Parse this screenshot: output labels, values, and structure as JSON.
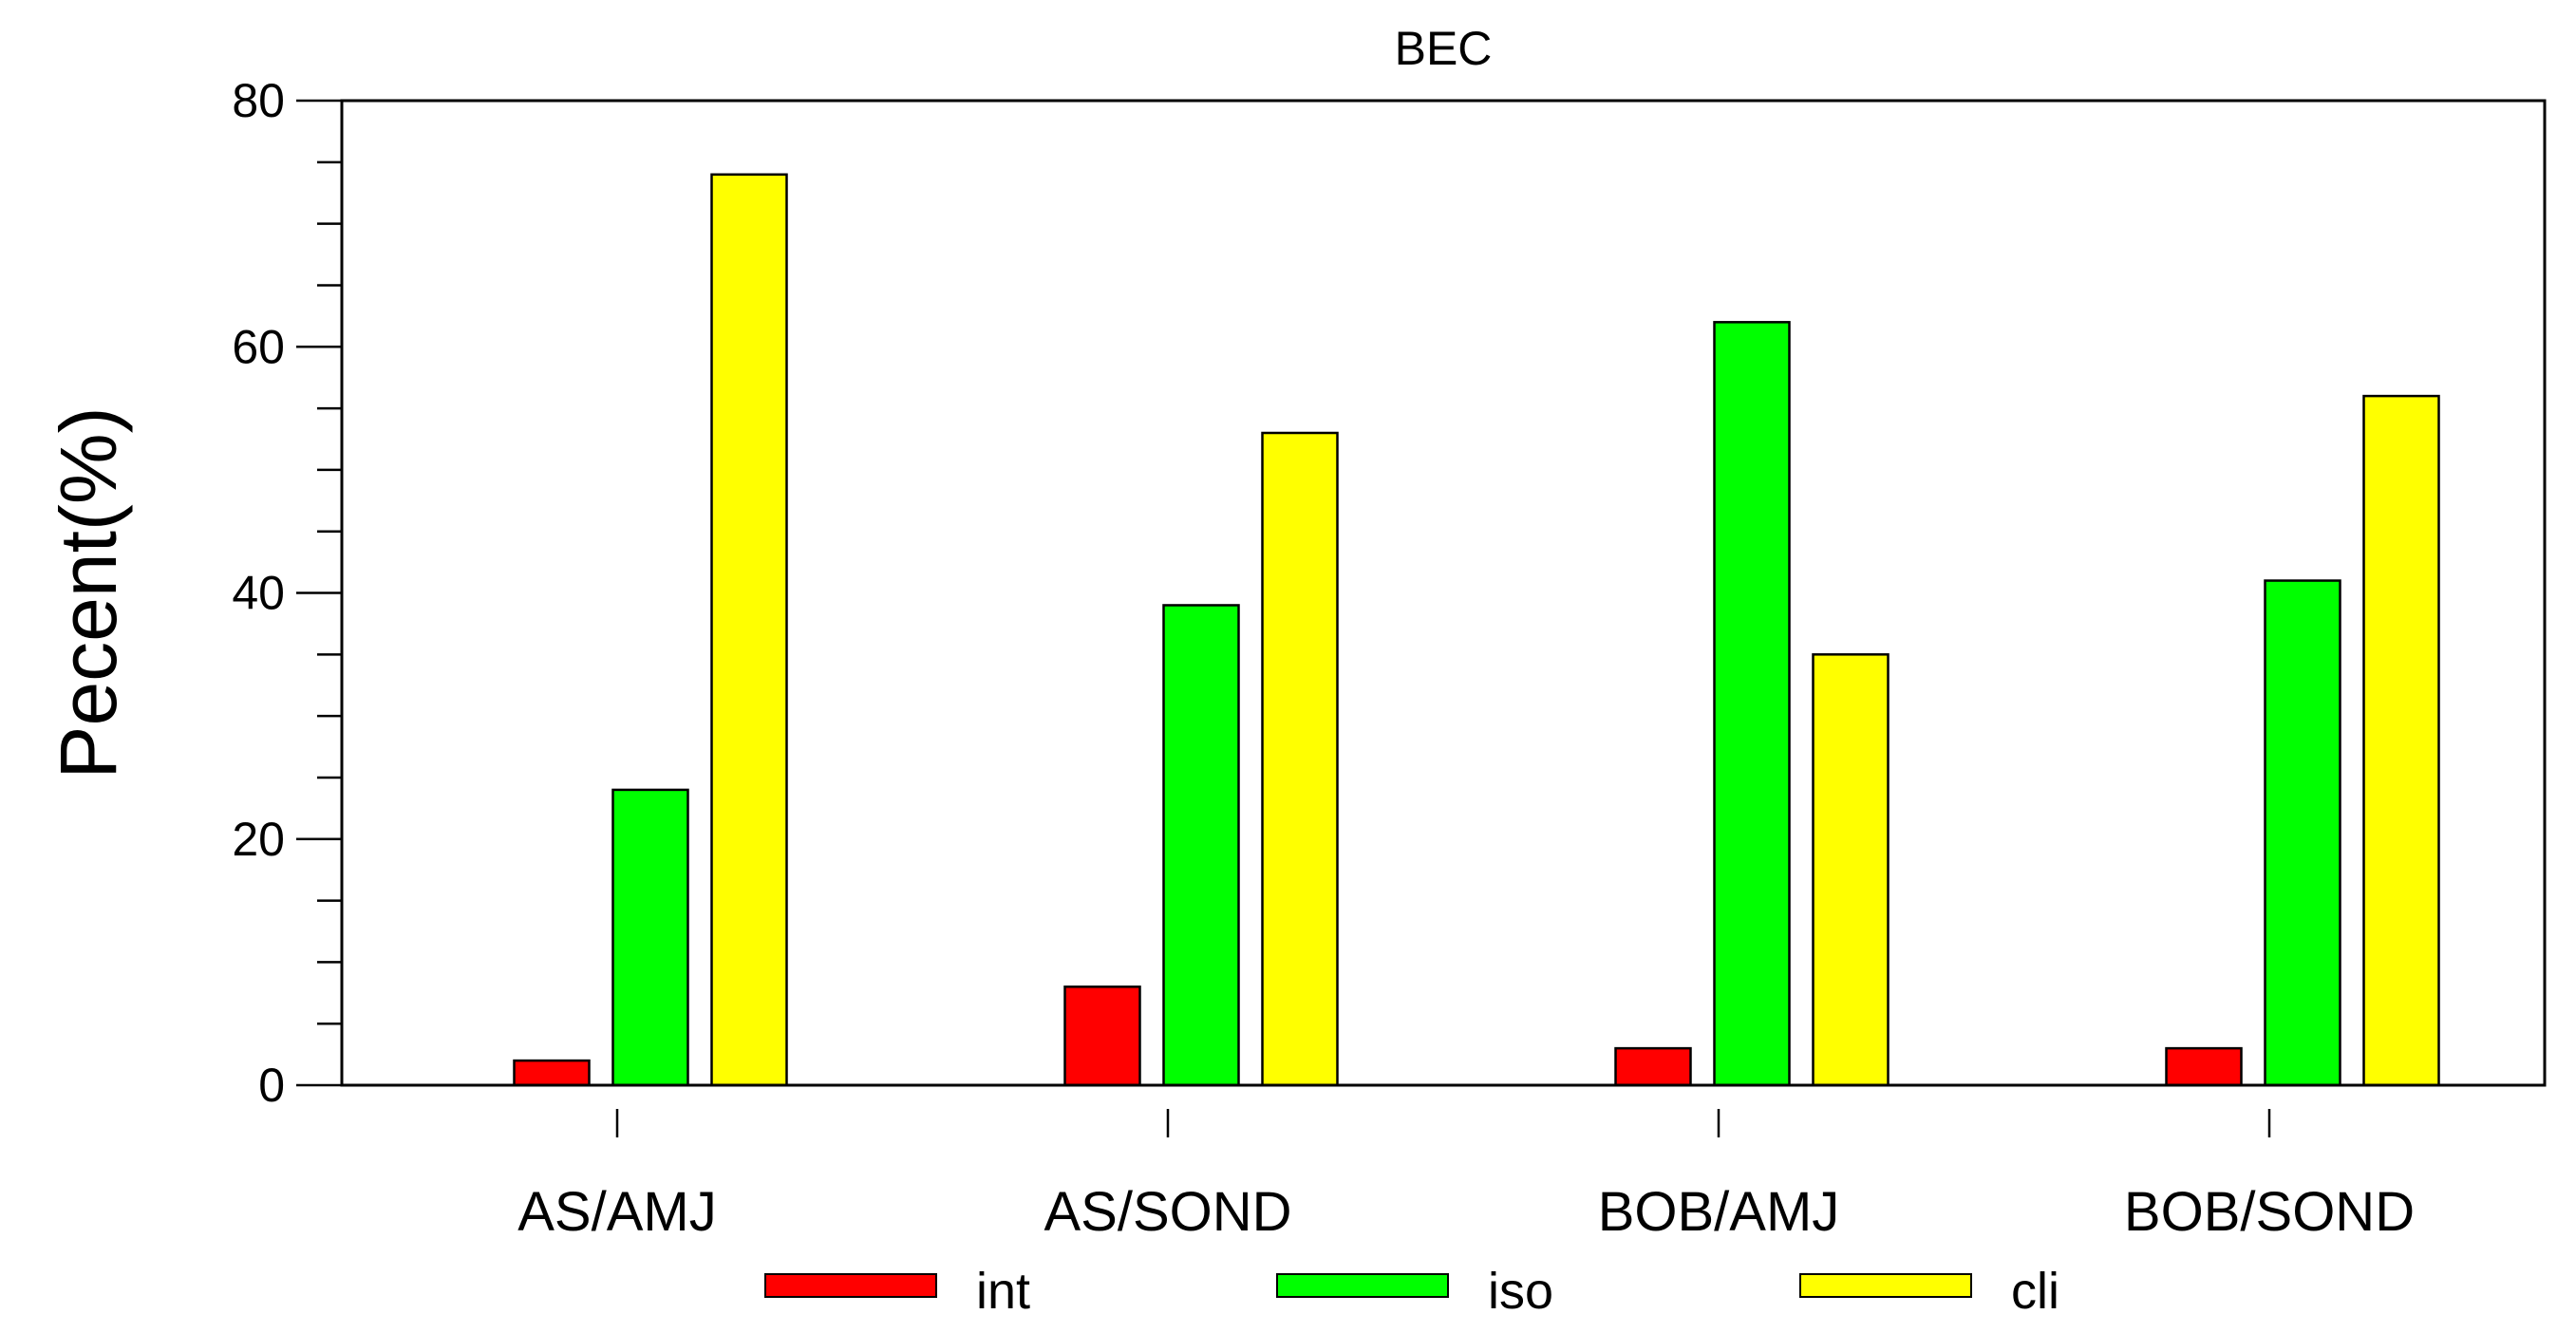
{
  "chart_data": {
    "type": "bar",
    "title": "BEC",
    "xlabel": "",
    "ylabel": "Pecent(%)",
    "ylim": [
      0,
      80
    ],
    "y_major_ticks": [
      0,
      20,
      40,
      60,
      80
    ],
    "y_tick_labels": [
      "0",
      "20",
      "40",
      "60",
      "80"
    ],
    "y_minor_step": 5,
    "categories": [
      "AS/AMJ",
      "AS/SOND",
      "BOB/AMJ",
      "BOB/SOND"
    ],
    "series": [
      {
        "name": "int",
        "color": "#ff0000",
        "values": [
          2,
          8,
          3,
          3
        ]
      },
      {
        "name": "iso",
        "color": "#00ff00",
        "values": [
          24,
          39,
          62,
          41
        ]
      },
      {
        "name": "cli",
        "color": "#ffff00",
        "values": [
          74,
          53,
          35,
          56
        ]
      }
    ],
    "legend_position": "bottom",
    "grid": false
  }
}
